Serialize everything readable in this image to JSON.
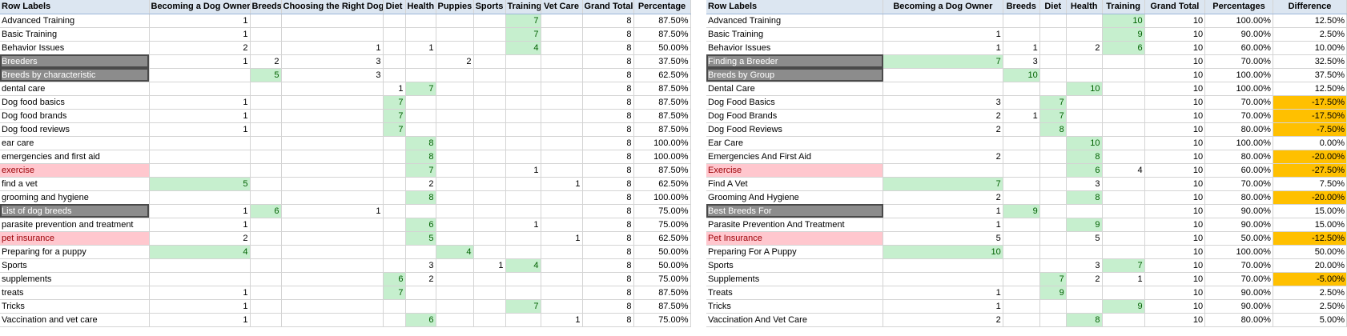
{
  "left": {
    "headers": [
      "Row Labels",
      "Becoming a Dog Owner",
      "Breeds",
      "Choosing the Right Dog",
      "Diet",
      "Health",
      "Puppies",
      "Sports",
      "Training",
      "Vet Care",
      "Grand Total",
      "Percentage"
    ],
    "rows": [
      {
        "label": "Advanced Training",
        "style": "",
        "cells": [
          "1",
          "",
          "",
          "",
          "",
          "",
          "",
          "7",
          "",
          "8",
          "87.50%"
        ],
        "hl": [
          7
        ]
      },
      {
        "label": "Basic Training",
        "style": "",
        "cells": [
          "1",
          "",
          "",
          "",
          "",
          "",
          "",
          "7",
          "",
          "8",
          "87.50%"
        ],
        "hl": [
          7
        ]
      },
      {
        "label": "Behavior Issues",
        "style": "",
        "cells": [
          "2",
          "",
          "1",
          "",
          "1",
          "",
          "",
          "4",
          "",
          "8",
          "50.00%"
        ],
        "hl": [
          7
        ]
      },
      {
        "label": "Breeders",
        "style": "grp",
        "cells": [
          "1",
          "2",
          "3",
          "",
          "",
          "2",
          "",
          "",
          "",
          "8",
          "37.50%"
        ],
        "hl": []
      },
      {
        "label": "Breeds by characteristic",
        "style": "grp",
        "cells": [
          "",
          "5",
          "3",
          "",
          "",
          "",
          "",
          "",
          "",
          "8",
          "62.50%"
        ],
        "hl": [
          1
        ]
      },
      {
        "label": "dental care",
        "style": "",
        "cells": [
          "",
          "",
          "",
          "1",
          "7",
          "",
          "",
          "",
          "",
          "8",
          "87.50%"
        ],
        "hl": [
          4
        ]
      },
      {
        "label": "Dog food basics",
        "style": "",
        "cells": [
          "1",
          "",
          "",
          "7",
          "",
          "",
          "",
          "",
          "",
          "8",
          "87.50%"
        ],
        "hl": [
          3
        ]
      },
      {
        "label": "Dog food brands",
        "style": "",
        "cells": [
          "1",
          "",
          "",
          "7",
          "",
          "",
          "",
          "",
          "",
          "8",
          "87.50%"
        ],
        "hl": [
          3
        ]
      },
      {
        "label": "Dog food reviews",
        "style": "",
        "cells": [
          "1",
          "",
          "",
          "7",
          "",
          "",
          "",
          "",
          "",
          "8",
          "87.50%"
        ],
        "hl": [
          3
        ]
      },
      {
        "label": "ear care",
        "style": "",
        "cells": [
          "",
          "",
          "",
          "",
          "8",
          "",
          "",
          "",
          "",
          "8",
          "100.00%"
        ],
        "hl": [
          4
        ]
      },
      {
        "label": "emergencies and first aid",
        "style": "",
        "cells": [
          "",
          "",
          "",
          "",
          "8",
          "",
          "",
          "",
          "",
          "8",
          "100.00%"
        ],
        "hl": [
          4
        ]
      },
      {
        "label": "exercise",
        "style": "pink",
        "cells": [
          "",
          "",
          "",
          "",
          "7",
          "",
          "",
          "1",
          "",
          "8",
          "87.50%"
        ],
        "hl": [
          4
        ]
      },
      {
        "label": "find a vet",
        "style": "",
        "cells": [
          "5",
          "",
          "",
          "",
          "2",
          "",
          "",
          "",
          "1",
          "8",
          "62.50%"
        ],
        "hl": [
          0
        ]
      },
      {
        "label": "grooming and hygiene",
        "style": "",
        "cells": [
          "",
          "",
          "",
          "",
          "8",
          "",
          "",
          "",
          "",
          "8",
          "100.00%"
        ],
        "hl": [
          4
        ]
      },
      {
        "label": "List of dog breeds",
        "style": "grp",
        "cells": [
          "1",
          "6",
          "1",
          "",
          "",
          "",
          "",
          "",
          "",
          "8",
          "75.00%"
        ],
        "hl": [
          1
        ]
      },
      {
        "label": "parasite prevention and treatment",
        "style": "",
        "cells": [
          "1",
          "",
          "",
          "",
          "6",
          "",
          "",
          "1",
          "",
          "8",
          "75.00%"
        ],
        "hl": [
          4
        ]
      },
      {
        "label": "pet insurance",
        "style": "pink",
        "cells": [
          "2",
          "",
          "",
          "",
          "5",
          "",
          "",
          "",
          "1",
          "8",
          "62.50%"
        ],
        "hl": [
          4
        ]
      },
      {
        "label": "Preparing for a puppy",
        "style": "",
        "cells": [
          "4",
          "",
          "",
          "",
          "",
          "4",
          "",
          "",
          "",
          "8",
          "50.00%"
        ],
        "hl": [
          0,
          5
        ]
      },
      {
        "label": "Sports",
        "style": "",
        "cells": [
          "",
          "",
          "",
          "",
          "3",
          "",
          "1",
          "4",
          "",
          "8",
          "50.00%"
        ],
        "hl": [
          7
        ]
      },
      {
        "label": "supplements",
        "style": "",
        "cells": [
          "",
          "",
          "",
          "6",
          "2",
          "",
          "",
          "",
          "",
          "8",
          "75.00%"
        ],
        "hl": [
          3
        ]
      },
      {
        "label": "treats",
        "style": "",
        "cells": [
          "1",
          "",
          "",
          "7",
          "",
          "",
          "",
          "",
          "",
          "8",
          "87.50%"
        ],
        "hl": [
          3
        ]
      },
      {
        "label": "Tricks",
        "style": "",
        "cells": [
          "1",
          "",
          "",
          "",
          "",
          "",
          "",
          "7",
          "",
          "8",
          "87.50%"
        ],
        "hl": [
          7
        ]
      },
      {
        "label": "Vaccination and vet care",
        "style": "",
        "cells": [
          "1",
          "",
          "",
          "",
          "6",
          "",
          "",
          "",
          "1",
          "8",
          "75.00%"
        ],
        "hl": [
          4
        ]
      }
    ]
  },
  "right": {
    "headers": [
      "Row Labels",
      "Becoming a Dog Owner",
      "Breeds",
      "Diet",
      "Health",
      "Training",
      "Grand Total",
      "Percentages",
      "Difference"
    ],
    "rows": [
      {
        "label": "Advanced Training",
        "style": "",
        "cells": [
          "",
          "",
          "",
          "",
          "10",
          "10",
          "100.00%",
          "12.50%"
        ],
        "hl": [
          4
        ],
        "diffHl": false
      },
      {
        "label": "Basic Training",
        "style": "",
        "cells": [
          "1",
          "",
          "",
          "",
          "9",
          "10",
          "90.00%",
          "2.50%"
        ],
        "hl": [
          4
        ],
        "diffHl": false
      },
      {
        "label": "Behavior Issues",
        "style": "",
        "cells": [
          "1",
          "1",
          "",
          "2",
          "6",
          "10",
          "60.00%",
          "10.00%"
        ],
        "hl": [
          4
        ],
        "diffHl": false
      },
      {
        "label": "Finding a Breeder",
        "style": "grp",
        "cells": [
          "7",
          "3",
          "",
          "",
          "",
          "10",
          "70.00%",
          "32.50%"
        ],
        "hl": [
          0
        ],
        "diffHl": false
      },
      {
        "label": "Breeds by Group",
        "style": "grp",
        "cells": [
          "",
          "10",
          "",
          "",
          "",
          "10",
          "100.00%",
          "37.50%"
        ],
        "hl": [
          1
        ],
        "diffHl": false
      },
      {
        "label": "Dental Care",
        "style": "",
        "cells": [
          "",
          "",
          "",
          "10",
          "",
          "10",
          "100.00%",
          "12.50%"
        ],
        "hl": [
          3
        ],
        "diffHl": false
      },
      {
        "label": "Dog Food Basics",
        "style": "",
        "cells": [
          "3",
          "",
          "7",
          "",
          "",
          "10",
          "70.00%",
          "-17.50%"
        ],
        "hl": [
          2
        ],
        "diffHl": true
      },
      {
        "label": "Dog Food Brands",
        "style": "",
        "cells": [
          "2",
          "1",
          "7",
          "",
          "",
          "10",
          "70.00%",
          "-17.50%"
        ],
        "hl": [
          2
        ],
        "diffHl": true
      },
      {
        "label": "Dog Food Reviews",
        "style": "",
        "cells": [
          "2",
          "",
          "8",
          "",
          "",
          "10",
          "80.00%",
          "-7.50%"
        ],
        "hl": [
          2
        ],
        "diffHl": true
      },
      {
        "label": "Ear Care",
        "style": "",
        "cells": [
          "",
          "",
          "",
          "10",
          "",
          "10",
          "100.00%",
          "0.00%"
        ],
        "hl": [
          3
        ],
        "diffHl": false
      },
      {
        "label": "Emergencies And First Aid",
        "style": "",
        "cells": [
          "2",
          "",
          "",
          "8",
          "",
          "10",
          "80.00%",
          "-20.00%"
        ],
        "hl": [
          3
        ],
        "diffHl": true
      },
      {
        "label": "Exercise",
        "style": "pink",
        "cells": [
          "",
          "",
          "",
          "6",
          "4",
          "10",
          "60.00%",
          "-27.50%"
        ],
        "hl": [
          3
        ],
        "diffHl": true
      },
      {
        "label": "Find A Vet",
        "style": "",
        "cells": [
          "7",
          "",
          "",
          "3",
          "",
          "10",
          "70.00%",
          "7.50%"
        ],
        "hl": [
          0
        ],
        "diffHl": false
      },
      {
        "label": "Grooming And Hygiene",
        "style": "",
        "cells": [
          "2",
          "",
          "",
          "8",
          "",
          "10",
          "80.00%",
          "-20.00%"
        ],
        "hl": [
          3
        ],
        "diffHl": true
      },
      {
        "label": "Best Breeds For",
        "style": "grp",
        "cells": [
          "1",
          "9",
          "",
          "",
          "",
          "10",
          "90.00%",
          "15.00%"
        ],
        "hl": [
          1
        ],
        "diffHl": false
      },
      {
        "label": "Parasite Prevention And Treatment",
        "style": "",
        "cells": [
          "1",
          "",
          "",
          "9",
          "",
          "10",
          "90.00%",
          "15.00%"
        ],
        "hl": [
          3
        ],
        "diffHl": false
      },
      {
        "label": "Pet Insurance",
        "style": "pink",
        "cells": [
          "5",
          "",
          "",
          "5",
          "",
          "10",
          "50.00%",
          "-12.50%"
        ],
        "hl": [],
        "diffHl": true
      },
      {
        "label": "Preparing For A Puppy",
        "style": "",
        "cells": [
          "10",
          "",
          "",
          "",
          "",
          "10",
          "100.00%",
          "50.00%"
        ],
        "hl": [
          0
        ],
        "diffHl": false
      },
      {
        "label": "Sports",
        "style": "",
        "cells": [
          "",
          "",
          "",
          "3",
          "7",
          "10",
          "70.00%",
          "20.00%"
        ],
        "hl": [
          4
        ],
        "diffHl": false
      },
      {
        "label": "Supplements",
        "style": "",
        "cells": [
          "",
          "",
          "7",
          "2",
          "1",
          "10",
          "70.00%",
          "-5.00%"
        ],
        "hl": [
          2
        ],
        "diffHl": true
      },
      {
        "label": "Treats",
        "style": "",
        "cells": [
          "1",
          "",
          "9",
          "",
          "",
          "10",
          "90.00%",
          "2.50%"
        ],
        "hl": [
          2
        ],
        "diffHl": false
      },
      {
        "label": "Tricks",
        "style": "",
        "cells": [
          "1",
          "",
          "",
          "",
          "9",
          "10",
          "90.00%",
          "2.50%"
        ],
        "hl": [
          4
        ],
        "diffHl": false
      },
      {
        "label": "Vaccination And Vet Care",
        "style": "",
        "cells": [
          "2",
          "",
          "",
          "8",
          "",
          "10",
          "80.00%",
          "5.00%"
        ],
        "hl": [
          3
        ],
        "diffHl": false
      }
    ]
  }
}
